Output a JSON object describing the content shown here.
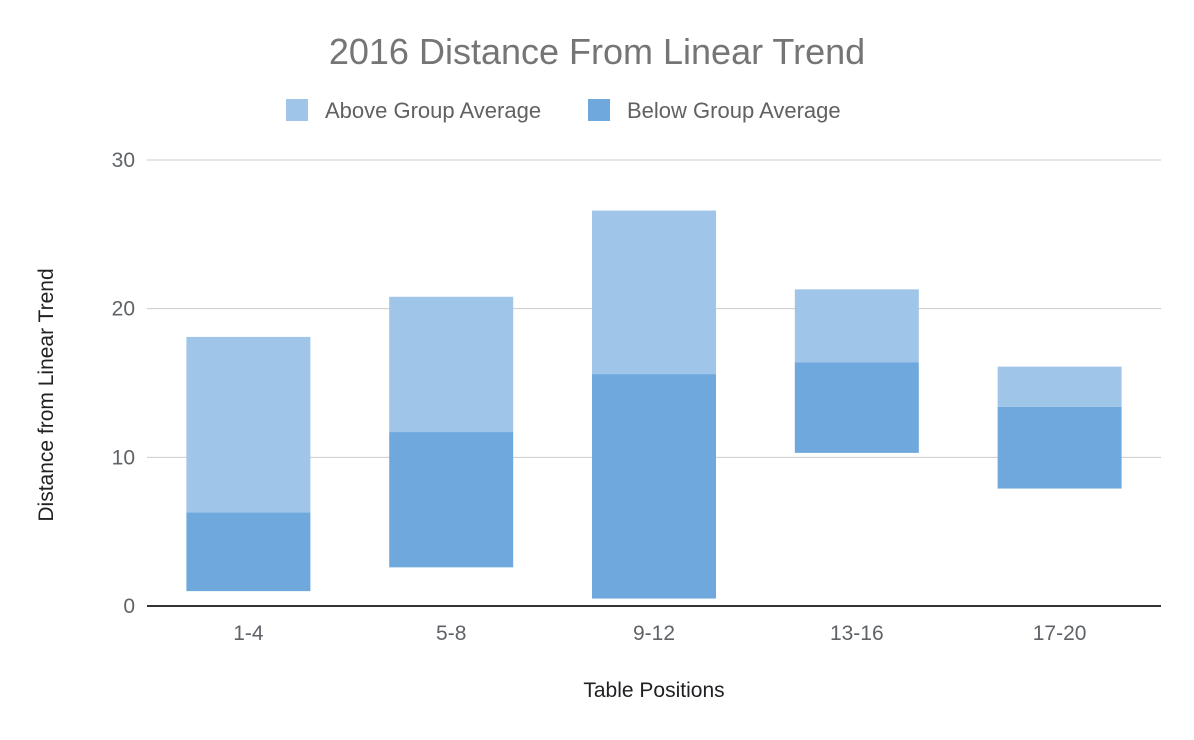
{
  "chart_data": {
    "type": "bar",
    "title": "2016 Distance From Linear Trend",
    "xlabel": "Table Positions",
    "ylabel": "Distance from Linear Trend",
    "categories": [
      "1-4",
      "5-8",
      "9-12",
      "13-16",
      "17-20"
    ],
    "ylim": [
      0,
      30
    ],
    "yticks": [
      0,
      10,
      20,
      30
    ],
    "grid": true,
    "legend_position": "top",
    "stacked": true,
    "series": [
      {
        "name": "Below Group Average",
        "color": "#6fa8dc",
        "ranges": [
          [
            1.0,
            6.3
          ],
          [
            2.6,
            11.7
          ],
          [
            0.5,
            15.6
          ],
          [
            10.3,
            16.4
          ],
          [
            7.9,
            13.4
          ]
        ]
      },
      {
        "name": "Above Group Average",
        "color": "#9fc5e8",
        "ranges": [
          [
            6.3,
            18.1
          ],
          [
            11.7,
            20.8
          ],
          [
            15.6,
            26.6
          ],
          [
            16.4,
            21.3
          ],
          [
            13.4,
            16.1
          ]
        ]
      }
    ],
    "legend_order": [
      "Above Group Average",
      "Below Group Average"
    ]
  }
}
